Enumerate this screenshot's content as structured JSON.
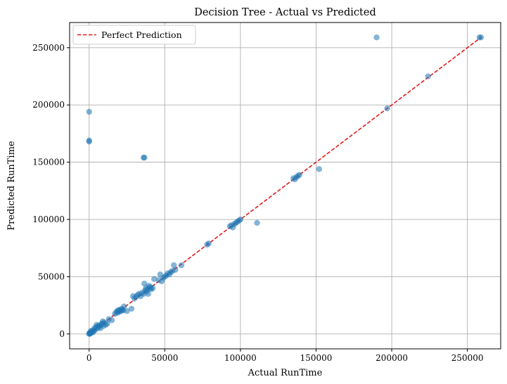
{
  "chart_data": {
    "type": "scatter",
    "title": "Decision Tree - Actual vs Predicted",
    "xlabel": "Actual RunTime",
    "ylabel": "Predicted RunTime",
    "xlim": [
      -12900,
      272000
    ],
    "ylim": [
      -13000,
      272000
    ],
    "xticks": [
      0,
      50000,
      100000,
      150000,
      200000,
      250000
    ],
    "yticks": [
      0,
      50000,
      100000,
      150000,
      200000,
      250000
    ],
    "grid": true,
    "legend_position": "top-left",
    "point_color": "#1f77b4",
    "point_alpha": 0.55,
    "reference_line": {
      "name": "Perfect Prediction",
      "color": "#e31a1c",
      "style": "dashed",
      "x": [
        0,
        259000
      ],
      "y": [
        0,
        259000
      ]
    },
    "series": [
      {
        "x": [
          0,
          200,
          400,
          600,
          800,
          1000,
          1500,
          2000,
          2500,
          3000,
          3500,
          4000,
          4500,
          5000,
          5500,
          6000,
          6500,
          7000,
          7500,
          8000,
          8500,
          9000,
          9500,
          10000,
          11000,
          12000,
          13000,
          15000,
          17000,
          18000,
          18500,
          19000,
          19500,
          20000,
          20500,
          21000,
          21500,
          22000,
          22500,
          23000,
          25000,
          28000,
          29000,
          30000,
          31000,
          32000,
          33000,
          34000,
          35000,
          36000,
          36500,
          37000,
          37500,
          38000,
          38500,
          39000,
          39500,
          40000,
          40500,
          41000,
          42000,
          43000,
          46000,
          47000,
          48000,
          49000,
          50000,
          51000,
          52000,
          53000,
          54000,
          55000,
          56000,
          57000,
          61000,
          78000,
          79000,
          93000,
          94000,
          95000,
          96000,
          97000,
          98000,
          99000,
          100000,
          111000,
          135000,
          136000,
          137000,
          138000,
          139000,
          152000,
          197000,
          224000,
          258000,
          259000,
          0,
          0,
          0,
          36000,
          36500,
          190000
        ],
        "y": [
          0,
          500,
          1000,
          200,
          800,
          2500,
          1000,
          3000,
          1500,
          2500,
          5000,
          3500,
          6000,
          8000,
          5000,
          7000,
          6500,
          7000,
          5000,
          8500,
          9000,
          11000,
          7000,
          10000,
          8000,
          9000,
          13000,
          12000,
          17500,
          19000,
          20000,
          18500,
          21000,
          19500,
          21000,
          20000,
          22000,
          21000,
          20500,
          24000,
          20000,
          22000,
          33000,
          31000,
          32500,
          34000,
          35000,
          33000,
          36000,
          35000,
          44000,
          38000,
          40000,
          37000,
          39000,
          35000,
          42000,
          40000,
          41000,
          39000,
          40000,
          48000,
          47000,
          52000,
          46000,
          49000,
          50000,
          51000,
          53000,
          52000,
          54000,
          55000,
          60000,
          56000,
          60000,
          78000,
          79000,
          94000,
          95000,
          93000,
          96000,
          97000,
          98000,
          99000,
          100000,
          97000,
          136000,
          135000,
          137000,
          138000,
          139000,
          144000,
          197000,
          225000,
          259000,
          259000,
          168000,
          169000,
          194000,
          154000,
          154000,
          259000
        ]
      }
    ]
  }
}
